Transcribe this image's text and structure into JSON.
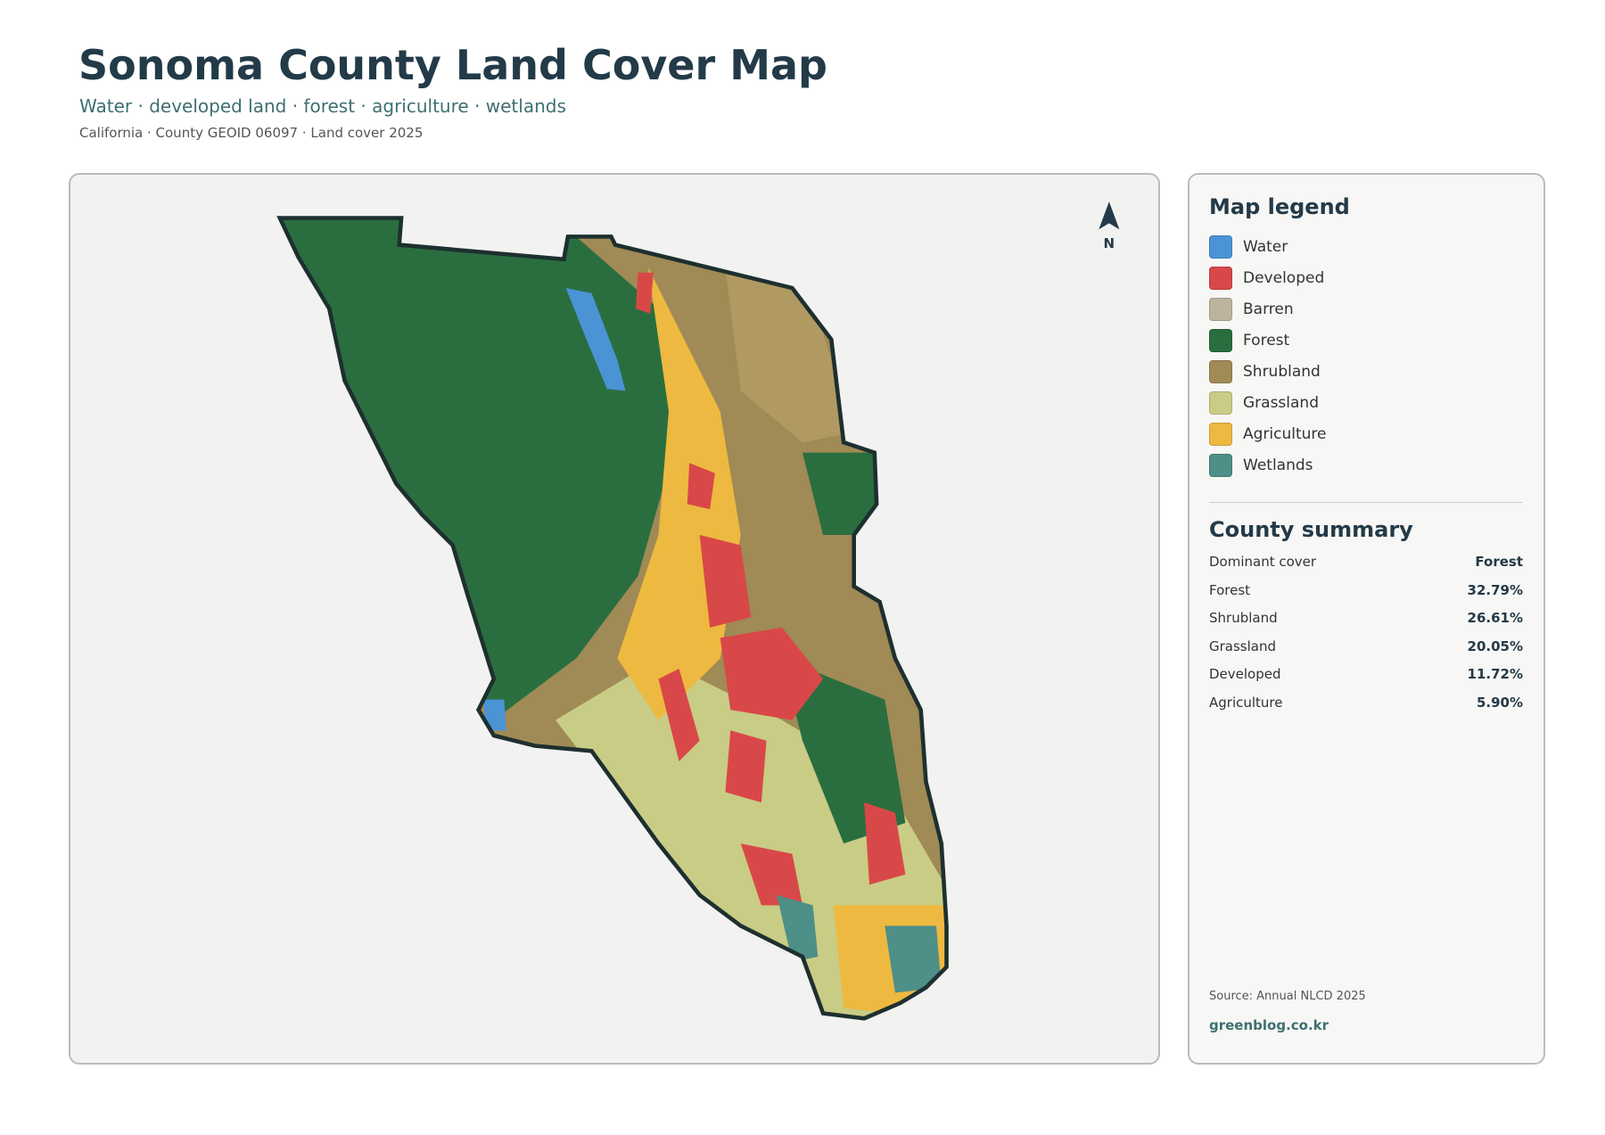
{
  "header": {
    "title": "Sonoma County Land Cover Map",
    "subtitle": "Water · developed land · forest · agriculture · wetlands",
    "meta": "California · County GEOID 06097 · Land cover 2025"
  },
  "map": {
    "north_label": "N"
  },
  "legend": {
    "title": "Map legend",
    "items": [
      {
        "name": "Water",
        "color": "#4a94d6"
      },
      {
        "name": "Developed",
        "color": "#d94848"
      },
      {
        "name": "Barren",
        "color": "#bdb4a0"
      },
      {
        "name": "Forest",
        "color": "#2a6e40"
      },
      {
        "name": "Shrubland",
        "color": "#a08a55"
      },
      {
        "name": "Grassland",
        "color": "#c9cc85"
      },
      {
        "name": "Agriculture",
        "color": "#eeb940"
      },
      {
        "name": "Wetlands",
        "color": "#4e8f88"
      }
    ]
  },
  "summary": {
    "title": "County summary",
    "rows": [
      [
        "Dominant cover",
        "Forest"
      ],
      [
        "Forest",
        "32.79%"
      ],
      [
        "Shrubland",
        "26.61%"
      ],
      [
        "Grassland",
        "20.05%"
      ],
      [
        "Developed",
        "11.72%"
      ],
      [
        "Agriculture",
        "5.90%"
      ]
    ]
  },
  "footer": {
    "source": "Source: Annual NLCD 2025",
    "site": "greenblog.co.kr"
  }
}
